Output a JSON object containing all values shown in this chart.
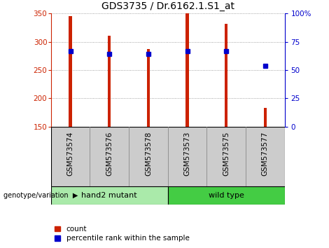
{
  "title": "GDS3735 / Dr.6162.1.S1_at",
  "categories": [
    "GSM573574",
    "GSM573576",
    "GSM573578",
    "GSM573573",
    "GSM573575",
    "GSM573577"
  ],
  "bar_values": [
    345,
    311,
    287,
    350,
    332,
    183
  ],
  "percentile_values": [
    67,
    64,
    64,
    67,
    67,
    54
  ],
  "bar_color": "#cc2200",
  "percentile_color": "#0000cc",
  "ylim_left": [
    150,
    350
  ],
  "ylim_right": [
    0,
    100
  ],
  "yticks_left": [
    150,
    200,
    250,
    300,
    350
  ],
  "yticks_right": [
    0,
    25,
    50,
    75,
    100
  ],
  "ytick_labels_right": [
    "0",
    "25",
    "50",
    "75",
    "100%"
  ],
  "groups": [
    {
      "label": "hand2 mutant",
      "color": "#aaeaaa",
      "span": [
        0,
        3
      ]
    },
    {
      "label": "wild type",
      "color": "#44cc44",
      "span": [
        3,
        6
      ]
    }
  ],
  "group_label_prefix": "genotype/variation",
  "legend_count_label": "count",
  "legend_pct_label": "percentile rank within the sample",
  "bar_width": 0.08,
  "marker_size": 5,
  "bg_color": "#ffffff",
  "grid_color": "#888888",
  "cell_bg_color": "#cccccc",
  "cell_edge_color": "#888888",
  "title_fontsize": 10,
  "tick_fontsize": 7.5
}
